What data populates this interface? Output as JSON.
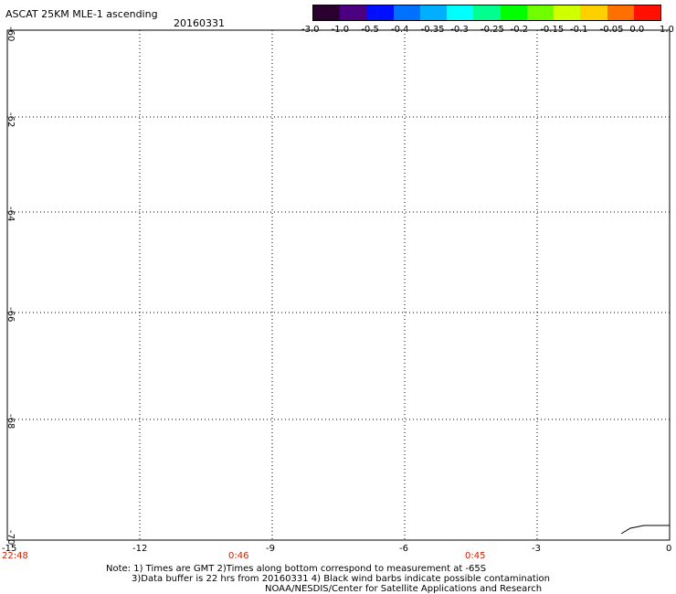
{
  "header": {
    "title": "ASCAT 25KM MLE-1 ascending",
    "date": "20160331"
  },
  "colorbar": {
    "labels": [
      "-3.0",
      "-1.0",
      "-0.5",
      "-0.4",
      "-0.35",
      "-0.3",
      "-0.25",
      "-0.2",
      "-0.15",
      "-0.1",
      "-0.05",
      "0.0",
      "1.0"
    ],
    "colors": [
      "#2a0030",
      "#4b0082",
      "#0010ff",
      "#0070ff",
      "#00b0ff",
      "#00ffff",
      "#00ff90",
      "#00ff00",
      "#70ff00",
      "#d0ff00",
      "#ffd000",
      "#ff7000",
      "#ff1000"
    ]
  },
  "map": {
    "lat_labels": [
      "-60",
      "-62",
      "-64",
      "-66",
      "-68",
      "-70"
    ],
    "lon_labels": [
      "-15",
      "-12",
      "-9",
      "-6",
      "-3",
      "0"
    ],
    "time_labels": [
      "22:48",
      "0:46",
      "0:45"
    ]
  },
  "notes": {
    "line1": "Note: 1) Times are GMT 2)Times along bottom correspond to measurement at -65S",
    "line2": "3)Data buffer is 22 hrs from 20160331 4) Black wind barbs indicate possible contamination",
    "line3": "NOAA/NESDIS/Center for Satellite Applications and Research"
  }
}
